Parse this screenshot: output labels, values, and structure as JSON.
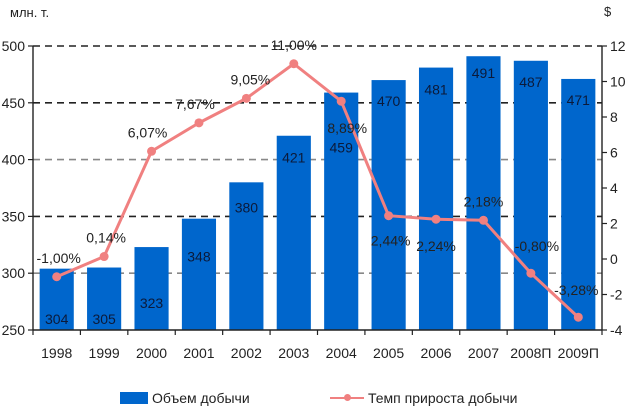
{
  "chart_data": {
    "type": "bar+line",
    "title": "",
    "left_axis_unit": "млн. т.",
    "right_axis_unit": "$",
    "categories": [
      "1998",
      "1999",
      "2000",
      "2001",
      "2002",
      "2003",
      "2004",
      "2005",
      "2006",
      "2007",
      "2008П",
      "2009П"
    ],
    "series": [
      {
        "name": "Объем добычи",
        "type": "bar",
        "axis": "left",
        "color": "#0066cc",
        "values": [
          304,
          305,
          323,
          348,
          380,
          421,
          459,
          470,
          481,
          491,
          487,
          471
        ],
        "labels": [
          "304",
          "305",
          "323",
          "348",
          "380",
          "421",
          "459",
          "470",
          "481",
          "491",
          "487",
          "471"
        ]
      },
      {
        "name": "Темп прироста добычи",
        "type": "line",
        "axis": "right",
        "color": "#f08080",
        "values": [
          -1.0,
          0.14,
          6.07,
          7.67,
          9.05,
          11.0,
          8.89,
          2.44,
          2.24,
          2.18,
          -0.8,
          -3.28
        ],
        "labels": [
          "-1,00%",
          "0,14%",
          "6,07%",
          "7,67%",
          "9,05%",
          "11,00%",
          "8,89%",
          "2,44%",
          "2,24%",
          "2,18%",
          "-0,80%",
          "-3,28%"
        ]
      }
    ],
    "left_axis": {
      "range": [
        250,
        500
      ],
      "ticks": [
        "500",
        "450",
        "400",
        "350",
        "300",
        "250"
      ]
    },
    "right_axis": {
      "range": [
        -4,
        12
      ],
      "ticks": [
        "12",
        "10",
        "8",
        "6",
        "4",
        "2",
        "0",
        "-2",
        "-4"
      ]
    },
    "grid": "dashed horizontal",
    "legend_position": "bottom"
  },
  "legend": {
    "bar_label": "Объем добычи",
    "line_label": "Темп прироста добычи"
  }
}
